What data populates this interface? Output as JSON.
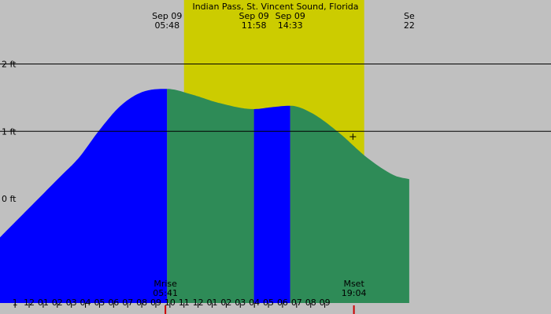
{
  "colors": {
    "night": "#c0c0c0",
    "daylight": "#cccc00",
    "rising": "#0000ff",
    "falling": "#2e8b57",
    "line": "#000000",
    "marker": "#cc0000"
  },
  "chart_data": {
    "type": "area",
    "title": "Indian Pass, St. Vincent Sound, Florida",
    "xlabel": "",
    "ylabel": "",
    "x_unit": "hours since midnight Sep 09",
    "xlim": [
      -6.07,
      33.07
    ],
    "ylim": [
      -1.55,
      2.95
    ],
    "grid": true,
    "y_ticks": [
      {
        "value": 2,
        "label": "2 ft"
      },
      {
        "value": 1,
        "label": "1 ft"
      },
      {
        "value": 0,
        "label": "0 ft"
      }
    ],
    "x_ticks": [
      {
        "hour": -5,
        "label": "1"
      },
      {
        "hour": -4,
        "label": "12"
      },
      {
        "hour": -3,
        "label": "01"
      },
      {
        "hour": -2,
        "label": "02"
      },
      {
        "hour": -1,
        "label": "03"
      },
      {
        "hour": 0,
        "label": "04"
      },
      {
        "hour": 1,
        "label": "05"
      },
      {
        "hour": 2,
        "label": "06"
      },
      {
        "hour": 3,
        "label": "07"
      },
      {
        "hour": 4,
        "label": "08"
      },
      {
        "hour": 5,
        "label": "09"
      },
      {
        "hour": 6,
        "label": "10"
      },
      {
        "hour": 7,
        "label": "11"
      },
      {
        "hour": 8,
        "label": "12"
      },
      {
        "hour": 9,
        "label": "01"
      },
      {
        "hour": 10,
        "label": "02"
      },
      {
        "hour": 11,
        "label": "03"
      },
      {
        "hour": 12,
        "label": "04"
      },
      {
        "hour": 13,
        "label": "05"
      },
      {
        "hour": 14,
        "label": "06"
      },
      {
        "hour": 15,
        "label": "07"
      },
      {
        "hour": 16,
        "label": "08"
      },
      {
        "hour": 17,
        "label": "09"
      }
    ],
    "daylight": {
      "start": 7.0,
      "end": 19.8
    },
    "events": [
      {
        "date": "Sep 09",
        "time": "05:48",
        "hour": 5.8
      },
      {
        "date": "Sep 09",
        "time": "11:58",
        "hour": 11.97
      },
      {
        "date": "Sep 09",
        "time": "14:33",
        "hour": 14.55
      },
      {
        "date": "Se",
        "time": "22",
        "hour": 23.0
      }
    ],
    "phases": [
      {
        "name": "rising",
        "start": -6.07,
        "end": 5.8
      },
      {
        "name": "falling",
        "start": 5.8,
        "end": 11.97
      },
      {
        "name": "rising",
        "start": 11.97,
        "end": 14.55
      },
      {
        "name": "falling",
        "start": 14.55,
        "end": 23.0
      }
    ],
    "series": [
      {
        "x": [
          -1.78,
          -0.5,
          1.0,
          2.5,
          4.0,
          5.8,
          7.5,
          9.5,
          11.97,
          13.3,
          14.55,
          16.0,
          18.0,
          20.0,
          22.0,
          23.0
        ],
        "values": [
          0.33,
          0.6,
          1.02,
          1.38,
          1.58,
          1.63,
          1.55,
          1.42,
          1.33,
          1.36,
          1.38,
          1.28,
          0.98,
          0.61,
          0.34,
          0.29
        ]
      }
    ],
    "moon": [
      {
        "label": "Mrise",
        "time": "05:41",
        "hour": 5.68
      },
      {
        "label": "Mset",
        "time": "19:04",
        "hour": 19.07
      }
    ],
    "current": {
      "hour": 19.0,
      "value": 0.92
    }
  }
}
